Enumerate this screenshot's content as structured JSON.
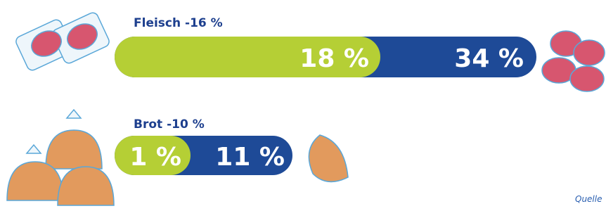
{
  "rows": [
    {
      "title": "Fleisch -16 %",
      "inner_label": "18 %",
      "outer_label": "34 %"
    },
    {
      "title": "Brot -10 %",
      "inner_label": "1 %",
      "outer_label": "11 %"
    }
  ],
  "source": "Quelle"
}
